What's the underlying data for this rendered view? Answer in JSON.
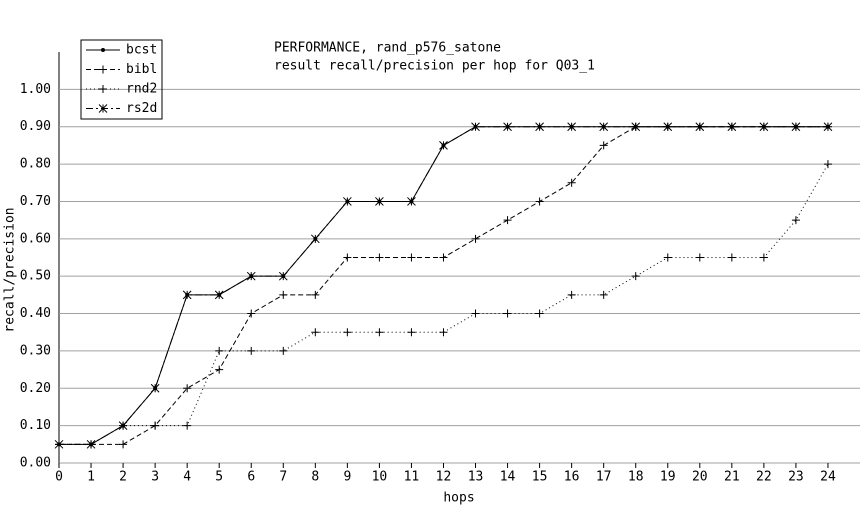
{
  "chart_data": {
    "type": "line",
    "title": "PERFORMANCE, rand_p576_satone",
    "subtitle": "result recall/precision per hop for Q03_1",
    "x_label": "hops",
    "y_label": "recall/precision",
    "x": [
      0,
      1,
      2,
      3,
      4,
      5,
      6,
      7,
      8,
      9,
      10,
      11,
      12,
      13,
      14,
      15,
      16,
      17,
      18,
      19,
      20,
      21,
      22,
      23,
      24
    ],
    "series": [
      {
        "name": "bcst",
        "color": "#000000",
        "values": [
          0.05,
          0.05,
          0.1,
          0.2,
          0.45,
          0.45,
          0.5,
          0.5,
          0.6,
          0.7,
          0.7,
          0.7,
          0.85,
          0.9,
          0.9,
          0.9,
          0.9,
          0.9,
          0.9,
          0.9,
          0.9,
          0.9,
          0.9,
          0.9,
          0.9
        ]
      },
      {
        "name": "bibl",
        "color": "#000000",
        "values": [
          0.05,
          0.05,
          0.05,
          0.1,
          0.2,
          0.25,
          0.4,
          0.45,
          0.45,
          0.55,
          0.55,
          0.55,
          0.55,
          0.6,
          0.65,
          0.7,
          0.75,
          0.85,
          0.9,
          0.9,
          0.9,
          0.9,
          0.9,
          0.9,
          0.9
        ]
      },
      {
        "name": "rnd2",
        "color": "#000000",
        "values": [
          0.05,
          0.05,
          0.1,
          0.1,
          0.1,
          0.3,
          0.3,
          0.3,
          0.35,
          0.35,
          0.35,
          0.35,
          0.35,
          0.4,
          0.4,
          0.4,
          0.45,
          0.45,
          0.5,
          0.55,
          0.55,
          0.55,
          0.55,
          0.65,
          0.8
        ]
      },
      {
        "name": "rs2d",
        "color": "#000000",
        "values": [
          0.05,
          0.05,
          0.1,
          0.2,
          0.45,
          0.45,
          0.5,
          0.5,
          0.6,
          0.7,
          0.7,
          0.7,
          0.85,
          0.9,
          0.9,
          0.9,
          0.9,
          0.9,
          0.9,
          0.9,
          0.9,
          0.9,
          0.9,
          0.9,
          0.9
        ]
      }
    ],
    "xlim": [
      0,
      25
    ],
    "xticks": [
      0,
      1,
      2,
      3,
      4,
      5,
      6,
      7,
      8,
      9,
      10,
      11,
      12,
      13,
      14,
      15,
      16,
      17,
      18,
      19,
      20,
      21,
      22,
      23,
      24
    ],
    "ylim": [
      0,
      1.1
    ],
    "yticks": [
      {
        "value": 0,
        "label": "0.00"
      },
      {
        "value": 0.1,
        "label": "0.10"
      },
      {
        "value": 0.2,
        "label": "0.20"
      },
      {
        "value": 0.3,
        "label": "0.30"
      },
      {
        "value": 0.4,
        "label": "0.40"
      },
      {
        "value": 0.5,
        "label": "0.50"
      },
      {
        "value": 0.6,
        "label": "0.60"
      },
      {
        "value": 0.7,
        "label": "0.70"
      },
      {
        "value": 0.8,
        "label": "0.80"
      },
      {
        "value": 0.9,
        "label": "0.90"
      },
      {
        "value": 1,
        "label": "1.00"
      }
    ],
    "grid": true,
    "legend": "top-left"
  }
}
